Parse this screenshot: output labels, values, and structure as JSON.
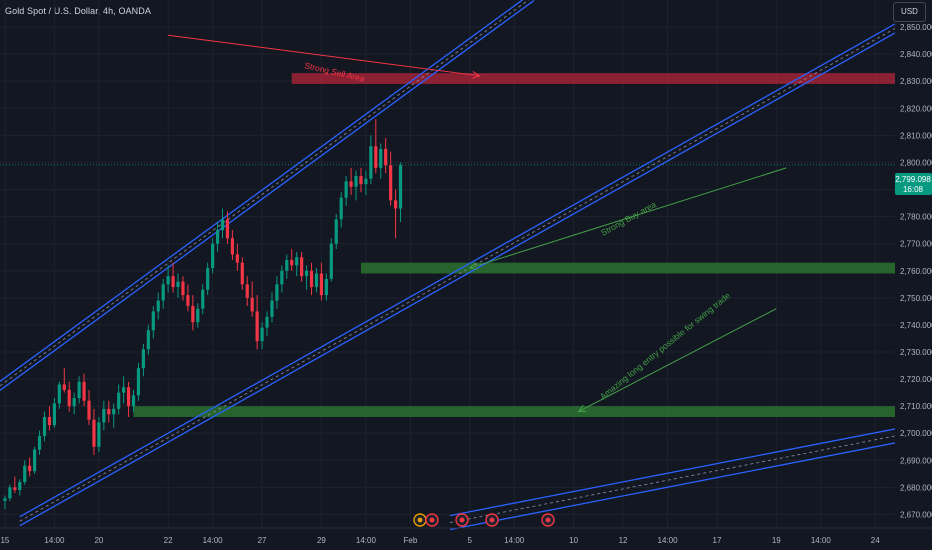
{
  "header": {
    "symbol_title": "Gold Spot / U.S. Dollar, 4h, OANDA",
    "currency_button": "USD"
  },
  "price_badge": {
    "price": "2,799.098",
    "countdown": "16:08",
    "color": "#089981"
  },
  "colors": {
    "background": "#131722",
    "up": "#089981",
    "down": "#f23645",
    "channel": "#2962ff",
    "sell_zone": "#b2263a",
    "buy_zone": "#2e7d32",
    "sell_arrow": "#f23645",
    "buy_arrow": "#43a047"
  },
  "annotations": {
    "sell_label": "Strong Sell Area",
    "buy_label": "Strong Buy area",
    "swing_label": "Amazing long entry possible for swing trade"
  },
  "events": {
    "icons": [
      "flash-icon",
      "earnings-icon",
      "earnings-icon",
      "earnings-icon",
      "earnings-icon"
    ]
  },
  "chart_data": {
    "type": "candlestick",
    "title": "Gold Spot / U.S. Dollar, 4h, OANDA",
    "y_axis": {
      "side": "right",
      "range": [
        2665,
        2860
      ],
      "ticks": [
        2670,
        2680,
        2690,
        2700,
        2710,
        2720,
        2730,
        2740,
        2750,
        2760,
        2770,
        2780,
        2790,
        2800,
        2810,
        2820,
        2830,
        2840,
        2850
      ],
      "tick_labels": [
        "2,670.000",
        "2,680.000",
        "2,690.000",
        "2,700.000",
        "2,710.000",
        "2,720.000",
        "2,730.000",
        "2,740.000",
        "2,750.000",
        "2,760.000",
        "2,770.000",
        "2,780.000",
        "2,790.000",
        "2,800.000",
        "2,810.000",
        "2,820.000",
        "2,830.000",
        "2,840.000",
        "2,850.000"
      ]
    },
    "x_axis": {
      "range_bars": [
        -1,
        180
      ],
      "ticks": [
        {
          "label": "15",
          "bar": 0
        },
        {
          "label": "14:00",
          "bar": 10
        },
        {
          "label": "20",
          "bar": 19
        },
        {
          "label": "22",
          "bar": 33
        },
        {
          "label": "14:00",
          "bar": 42
        },
        {
          "label": "27",
          "bar": 52
        },
        {
          "label": "29",
          "bar": 64
        },
        {
          "label": "14:00",
          "bar": 73
        },
        {
          "label": "Feb",
          "bar": 82
        },
        {
          "label": "5",
          "bar": 94
        },
        {
          "label": "14:00",
          "bar": 103
        },
        {
          "label": "10",
          "bar": 115
        },
        {
          "label": "12",
          "bar": 125
        },
        {
          "label": "14:00",
          "bar": 134
        },
        {
          "label": "17",
          "bar": 144
        },
        {
          "label": "19",
          "bar": 156
        },
        {
          "label": "14:00",
          "bar": 165
        },
        {
          "label": "24",
          "bar": 176
        }
      ]
    },
    "candles": [
      [
        2675,
        2677,
        2672,
        2676
      ],
      [
        2676,
        2681,
        2675,
        2680
      ],
      [
        2680,
        2684,
        2678,
        2679
      ],
      [
        2679,
        2683,
        2677,
        2682
      ],
      [
        2682,
        2690,
        2681,
        2688
      ],
      [
        2688,
        2691,
        2684,
        2686
      ],
      [
        2686,
        2695,
        2685,
        2694
      ],
      [
        2694,
        2701,
        2692,
        2699
      ],
      [
        2699,
        2708,
        2697,
        2706
      ],
      [
        2706,
        2710,
        2701,
        2703
      ],
      [
        2703,
        2713,
        2702,
        2711
      ],
      [
        2711,
        2719,
        2709,
        2718
      ],
      [
        2718,
        2724,
        2715,
        2716
      ],
      [
        2716,
        2719,
        2708,
        2710
      ],
      [
        2710,
        2715,
        2707,
        2713
      ],
      [
        2713,
        2721,
        2711,
        2719
      ],
      [
        2719,
        2722,
        2710,
        2712
      ],
      [
        2712,
        2716,
        2703,
        2705
      ],
      [
        2705,
        2709,
        2692,
        2695
      ],
      [
        2695,
        2706,
        2693,
        2704
      ],
      [
        2704,
        2712,
        2701,
        2709
      ],
      [
        2709,
        2712,
        2704,
        2707
      ],
      [
        2707,
        2711,
        2702,
        2709
      ],
      [
        2709,
        2718,
        2707,
        2715
      ],
      [
        2715,
        2721,
        2711,
        2717
      ],
      [
        2717,
        2719,
        2706,
        2710
      ],
      [
        2710,
        2716,
        2708,
        2714
      ],
      [
        2714,
        2726,
        2712,
        2724
      ],
      [
        2724,
        2733,
        2721,
        2731
      ],
      [
        2731,
        2740,
        2729,
        2738
      ],
      [
        2738,
        2747,
        2735,
        2745
      ],
      [
        2745,
        2752,
        2742,
        2749
      ],
      [
        2749,
        2757,
        2746,
        2755
      ],
      [
        2755,
        2762,
        2752,
        2758
      ],
      [
        2758,
        2763,
        2752,
        2754
      ],
      [
        2754,
        2759,
        2750,
        2756
      ],
      [
        2756,
        2758,
        2749,
        2751
      ],
      [
        2751,
        2755,
        2745,
        2747
      ],
      [
        2747,
        2751,
        2738,
        2741
      ],
      [
        2741,
        2748,
        2739,
        2746
      ],
      [
        2746,
        2755,
        2744,
        2753
      ],
      [
        2753,
        2763,
        2751,
        2761
      ],
      [
        2761,
        2772,
        2759,
        2770
      ],
      [
        2770,
        2778,
        2767,
        2775
      ],
      [
        2775,
        2783,
        2772,
        2779
      ],
      [
        2779,
        2782,
        2770,
        2772
      ],
      [
        2772,
        2775,
        2764,
        2766
      ],
      [
        2766,
        2770,
        2760,
        2763
      ],
      [
        2763,
        2765,
        2753,
        2755
      ],
      [
        2755,
        2758,
        2747,
        2750
      ],
      [
        2750,
        2756,
        2743,
        2745
      ],
      [
        2745,
        2751,
        2731,
        2734
      ],
      [
        2734,
        2741,
        2731,
        2739
      ],
      [
        2739,
        2745,
        2736,
        2743
      ],
      [
        2743,
        2752,
        2741,
        2749
      ],
      [
        2749,
        2758,
        2746,
        2755
      ],
      [
        2755,
        2762,
        2752,
        2760
      ],
      [
        2760,
        2766,
        2757,
        2764
      ],
      [
        2764,
        2768,
        2760,
        2762
      ],
      [
        2762,
        2767,
        2758,
        2765
      ],
      [
        2765,
        2767,
        2756,
        2758
      ],
      [
        2758,
        2762,
        2753,
        2760
      ],
      [
        2760,
        2763,
        2751,
        2754
      ],
      [
        2754,
        2761,
        2752,
        2759
      ],
      [
        2759,
        2763,
        2749,
        2751
      ],
      [
        2751,
        2759,
        2749,
        2757
      ],
      [
        2757,
        2772,
        2756,
        2770
      ],
      [
        2770,
        2781,
        2768,
        2779
      ],
      [
        2779,
        2789,
        2776,
        2787
      ],
      [
        2787,
        2795,
        2784,
        2793
      ],
      [
        2793,
        2798,
        2788,
        2791
      ],
      [
        2791,
        2797,
        2786,
        2795
      ],
      [
        2795,
        2798,
        2789,
        2792
      ],
      [
        2792,
        2797,
        2788,
        2794
      ],
      [
        2794,
        2810,
        2792,
        2806
      ],
      [
        2806,
        2816,
        2796,
        2798
      ],
      [
        2798,
        2807,
        2794,
        2805
      ],
      [
        2805,
        2809,
        2796,
        2799
      ],
      [
        2799,
        2804,
        2784,
        2786
      ],
      [
        2786,
        2790,
        2772,
        2783
      ],
      [
        2783,
        2800,
        2778,
        2799
      ]
    ],
    "channels": [
      {
        "name": "upper-channel",
        "start": [
          -1,
          2717.5
        ],
        "end": [
          107,
          2861.5
        ]
      },
      {
        "name": "lower-channel",
        "start": [
          3,
          2667.5
        ],
        "end": [
          180,
          2849.5
        ]
      },
      {
        "name": "bottom-channel",
        "start": [
          90,
          2667
        ],
        "end": [
          180,
          2699
        ]
      }
    ],
    "zones": [
      {
        "name": "sell-zone",
        "from_bar": 58,
        "to_bar": 180,
        "low": 2829,
        "high": 2833
      },
      {
        "name": "buy-zone",
        "from_bar": 72,
        "to_bar": 180,
        "low": 2759,
        "high": 2763
      },
      {
        "name": "long-entry-zone",
        "from_bar": 26,
        "to_bar": 180,
        "low": 2706,
        "high": 2710
      }
    ],
    "arrows": [
      {
        "name": "sell-arrow",
        "from": [
          33,
          2847
        ],
        "to": [
          96,
          2832
        ]
      },
      {
        "name": "buy-arrow",
        "from": [
          158,
          2798
        ],
        "to": [
          94,
          2761
        ]
      },
      {
        "name": "long-entry-arrow",
        "from": [
          156,
          2746
        ],
        "to": [
          116,
          2708
        ]
      }
    ],
    "last_price": 2799.098,
    "grid": true
  }
}
